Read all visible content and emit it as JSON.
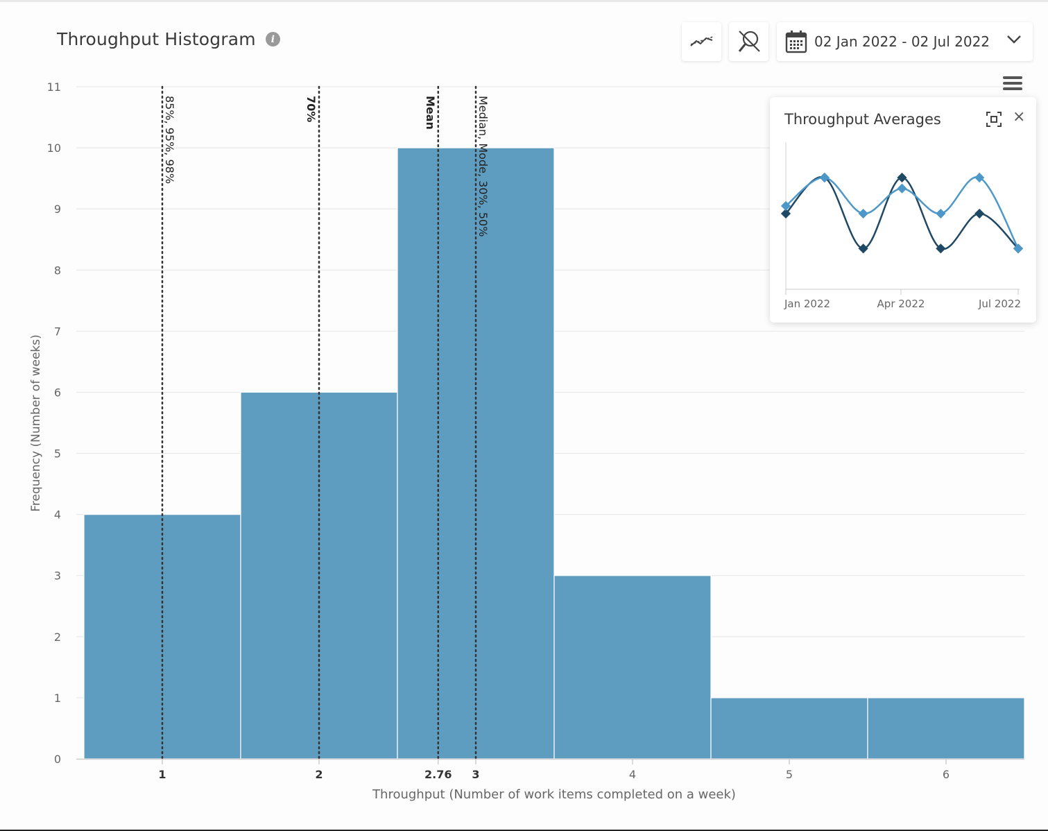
{
  "header": {
    "title": "Throughput Histogram",
    "info_icon": "info-icon",
    "trend_button_icon": "trend-line-icon",
    "zoom_off_button_icon": "zoom-off-icon",
    "date_range": "02 Jan 2022 - 02 Jul 2022",
    "calendar_icon": "calendar-icon",
    "dropdown_icon": "chevron-down-icon",
    "menu_icon": "hamburger-menu-icon"
  },
  "colors": {
    "bar": "#5f9dc0",
    "grid": "#e6e6e6",
    "marker_line": "#333333",
    "mini_dark": "#1f4864",
    "mini_light": "#4d98c8"
  },
  "chart_data": [
    {
      "type": "bar",
      "title": "Throughput Histogram",
      "xlabel": "Throughput (Number of work items completed on a week)",
      "ylabel": "Frequency (Number of weeks)",
      "ylim": [
        0,
        11
      ],
      "yticks": [
        "0",
        "1",
        "2",
        "3",
        "4",
        "5",
        "6",
        "7",
        "8",
        "9",
        "10",
        "11"
      ],
      "xlim": [
        0.5,
        6.5
      ],
      "xticks": [
        {
          "value": 1,
          "label": "1",
          "bold": true
        },
        {
          "value": 2,
          "label": "2",
          "bold": true
        },
        {
          "value": 2.76,
          "label": "2.76",
          "bold": true
        },
        {
          "value": 3,
          "label": "3",
          "bold": true
        },
        {
          "value": 4,
          "label": "4",
          "bold": false
        },
        {
          "value": 5,
          "label": "5",
          "bold": false
        },
        {
          "value": 6,
          "label": "6",
          "bold": false
        }
      ],
      "categories": [
        1,
        2,
        3,
        4,
        5,
        6
      ],
      "values": [
        4,
        6,
        10,
        3,
        1,
        1
      ],
      "markers": [
        {
          "x": 1,
          "label": "85%, 95%, 98%",
          "bold": false
        },
        {
          "x": 2,
          "label": "70%",
          "bold": true
        },
        {
          "x": 2.76,
          "label": "Mean",
          "bold": true
        },
        {
          "x": 3,
          "label": "Median, Mode, 30%, 50%",
          "bold": false
        }
      ],
      "grid": true,
      "legend": "none"
    },
    {
      "type": "line",
      "title": "Throughput Averages",
      "xticks": [
        "Jan 2022",
        "Apr 2022",
        "Jul 2022"
      ],
      "series": [
        {
          "values": [
            0.35,
            0.68,
            0.03,
            0.68,
            0.03,
            0.35,
            0.03
          ]
        },
        {
          "values": [
            0.42,
            0.68,
            0.35,
            0.58,
            0.35,
            0.68,
            0.03
          ]
        }
      ],
      "grid": false
    }
  ],
  "popup": {
    "title": "Throughput Averages",
    "expand_icon": "expand-icon",
    "close_label": "×"
  }
}
